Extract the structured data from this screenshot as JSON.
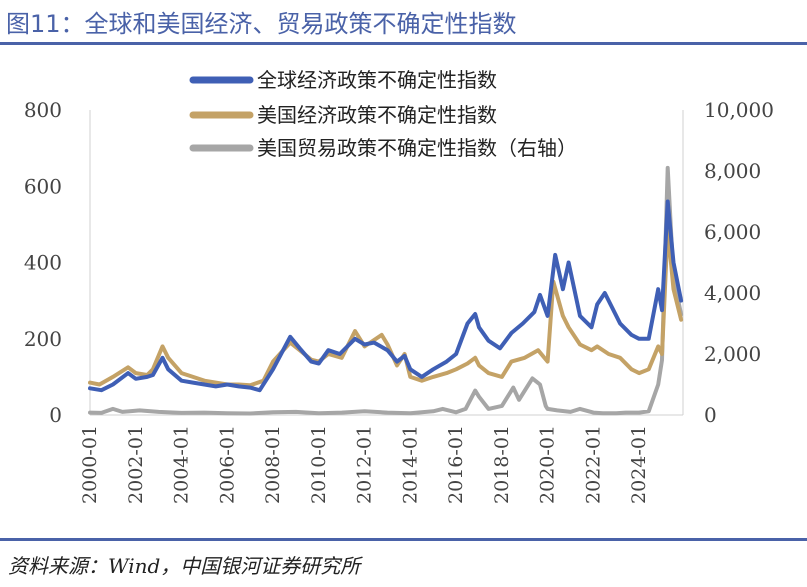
{
  "figure": {
    "title": "图11：全球和美国经济、贸易政策不确定性指数",
    "source": "资料来源：Wind，中国银河证券研究所"
  },
  "colors": {
    "accent": "#4a62a8",
    "global_epu": "#3f5fb5",
    "us_epu": "#c4a266",
    "us_tpu": "#a6a6a6"
  },
  "chart_data": {
    "type": "line",
    "x_ticks": [
      "2000-01",
      "2002-01",
      "2004-01",
      "2006-01",
      "2008-01",
      "2010-01",
      "2012-01",
      "2014-01",
      "2016-01",
      "2018-01",
      "2020-01",
      "2022-01",
      "2024-01"
    ],
    "y_left": {
      "ticks": [
        "0",
        "200",
        "400",
        "600",
        "800"
      ],
      "ylim": [
        0,
        800
      ]
    },
    "y_right": {
      "ticks": [
        "0",
        "2,000",
        "4,000",
        "6,000",
        "8,000",
        "10,000"
      ],
      "ylim": [
        0,
        10000
      ]
    },
    "legend_position": "top",
    "series": [
      {
        "name": "全球经济政策不确定性指数",
        "axis": "left",
        "color": "#3f5fb5",
        "points": [
          [
            "2000-01",
            70
          ],
          [
            "2000-07",
            65
          ],
          [
            "2001-01",
            80
          ],
          [
            "2001-09",
            110
          ],
          [
            "2002-01",
            95
          ],
          [
            "2002-07",
            100
          ],
          [
            "2002-10",
            105
          ],
          [
            "2003-03",
            150
          ],
          [
            "2003-06",
            120
          ],
          [
            "2004-01",
            90
          ],
          [
            "2004-07",
            85
          ],
          [
            "2005-01",
            80
          ],
          [
            "2005-07",
            75
          ],
          [
            "2006-01",
            80
          ],
          [
            "2006-07",
            75
          ],
          [
            "2007-01",
            72
          ],
          [
            "2007-06",
            65
          ],
          [
            "2008-01",
            120
          ],
          [
            "2008-10",
            205
          ],
          [
            "2009-03",
            175
          ],
          [
            "2009-09",
            140
          ],
          [
            "2010-01",
            135
          ],
          [
            "2010-06",
            170
          ],
          [
            "2010-12",
            160
          ],
          [
            "2011-08",
            200
          ],
          [
            "2012-01",
            185
          ],
          [
            "2012-06",
            190
          ],
          [
            "2013-01",
            170
          ],
          [
            "2013-06",
            140
          ],
          [
            "2013-10",
            155
          ],
          [
            "2014-01",
            120
          ],
          [
            "2014-07",
            100
          ],
          [
            "2015-01",
            120
          ],
          [
            "2015-08",
            140
          ],
          [
            "2016-01",
            160
          ],
          [
            "2016-07",
            240
          ],
          [
            "2016-11",
            265
          ],
          [
            "2017-01",
            230
          ],
          [
            "2017-06",
            195
          ],
          [
            "2017-12",
            175
          ],
          [
            "2018-06",
            215
          ],
          [
            "2018-12",
            240
          ],
          [
            "2019-06",
            270
          ],
          [
            "2019-09",
            315
          ],
          [
            "2020-01",
            260
          ],
          [
            "2020-05",
            420
          ],
          [
            "2020-09",
            330
          ],
          [
            "2020-12",
            400
          ],
          [
            "2021-06",
            260
          ],
          [
            "2021-12",
            230
          ],
          [
            "2022-03",
            290
          ],
          [
            "2022-07",
            320
          ],
          [
            "2022-12",
            270
          ],
          [
            "2023-03",
            240
          ],
          [
            "2023-09",
            210
          ],
          [
            "2024-01",
            200
          ],
          [
            "2024-06",
            200
          ],
          [
            "2024-11",
            330
          ],
          [
            "2025-01",
            275
          ],
          [
            "2025-04",
            560
          ],
          [
            "2025-07",
            400
          ],
          [
            "2025-11",
            300
          ]
        ]
      },
      {
        "name": "美国经济政策不确定性指数",
        "axis": "left",
        "color": "#c4a266",
        "points": [
          [
            "2000-01",
            85
          ],
          [
            "2000-06",
            80
          ],
          [
            "2001-01",
            100
          ],
          [
            "2001-09",
            125
          ],
          [
            "2002-01",
            110
          ],
          [
            "2002-07",
            105
          ],
          [
            "2002-10",
            120
          ],
          [
            "2003-03",
            180
          ],
          [
            "2003-06",
            150
          ],
          [
            "2004-01",
            110
          ],
          [
            "2004-07",
            100
          ],
          [
            "2005-01",
            90
          ],
          [
            "2005-07",
            85
          ],
          [
            "2006-01",
            80
          ],
          [
            "2006-07",
            80
          ],
          [
            "2007-01",
            78
          ],
          [
            "2007-08",
            90
          ],
          [
            "2008-01",
            140
          ],
          [
            "2008-10",
            190
          ],
          [
            "2009-03",
            170
          ],
          [
            "2009-09",
            145
          ],
          [
            "2010-01",
            140
          ],
          [
            "2010-06",
            160
          ],
          [
            "2011-01",
            150
          ],
          [
            "2011-08",
            220
          ],
          [
            "2012-01",
            180
          ],
          [
            "2012-10",
            210
          ],
          [
            "2013-01",
            185
          ],
          [
            "2013-06",
            130
          ],
          [
            "2013-10",
            160
          ],
          [
            "2014-01",
            100
          ],
          [
            "2014-07",
            90
          ],
          [
            "2015-01",
            100
          ],
          [
            "2015-08",
            110
          ],
          [
            "2016-01",
            120
          ],
          [
            "2016-07",
            135
          ],
          [
            "2016-11",
            150
          ],
          [
            "2017-01",
            130
          ],
          [
            "2017-06",
            110
          ],
          [
            "2018-01",
            100
          ],
          [
            "2018-06",
            140
          ],
          [
            "2019-01",
            150
          ],
          [
            "2019-08",
            170
          ],
          [
            "2020-01",
            140
          ],
          [
            "2020-04",
            350
          ],
          [
            "2020-09",
            260
          ],
          [
            "2020-12",
            230
          ],
          [
            "2021-06",
            185
          ],
          [
            "2021-12",
            170
          ],
          [
            "2022-03",
            180
          ],
          [
            "2022-09",
            160
          ],
          [
            "2023-03",
            150
          ],
          [
            "2023-09",
            120
          ],
          [
            "2024-01",
            110
          ],
          [
            "2024-06",
            120
          ],
          [
            "2024-11",
            180
          ],
          [
            "2025-01",
            160
          ],
          [
            "2025-04",
            490
          ],
          [
            "2025-07",
            330
          ],
          [
            "2025-11",
            250
          ]
        ]
      },
      {
        "name": "美国贸易政策不确定性指数（右轴）",
        "axis": "right",
        "color": "#a6a6a6",
        "points": [
          [
            "2000-01",
            80
          ],
          [
            "2000-07",
            70
          ],
          [
            "2001-01",
            200
          ],
          [
            "2001-06",
            100
          ],
          [
            "2002-03",
            150
          ],
          [
            "2003-01",
            100
          ],
          [
            "2004-01",
            70
          ],
          [
            "2005-01",
            80
          ],
          [
            "2006-01",
            60
          ],
          [
            "2007-01",
            50
          ],
          [
            "2008-01",
            90
          ],
          [
            "2009-01",
            100
          ],
          [
            "2010-01",
            60
          ],
          [
            "2011-01",
            80
          ],
          [
            "2012-01",
            120
          ],
          [
            "2013-01",
            80
          ],
          [
            "2014-01",
            60
          ],
          [
            "2015-01",
            120
          ],
          [
            "2015-06",
            200
          ],
          [
            "2016-01",
            90
          ],
          [
            "2016-06",
            200
          ],
          [
            "2016-11",
            800
          ],
          [
            "2017-01",
            600
          ],
          [
            "2017-06",
            200
          ],
          [
            "2018-01",
            300
          ],
          [
            "2018-07",
            900
          ],
          [
            "2018-10",
            500
          ],
          [
            "2019-05",
            1200
          ],
          [
            "2019-09",
            1000
          ],
          [
            "2019-12",
            300
          ],
          [
            "2020-01",
            200
          ],
          [
            "2020-06",
            150
          ],
          [
            "2021-01",
            100
          ],
          [
            "2021-06",
            200
          ],
          [
            "2022-01",
            80
          ],
          [
            "2022-06",
            60
          ],
          [
            "2023-01",
            60
          ],
          [
            "2023-06",
            80
          ],
          [
            "2024-01",
            80
          ],
          [
            "2024-06",
            120
          ],
          [
            "2024-11",
            1000
          ],
          [
            "2025-01",
            1800
          ],
          [
            "2025-04",
            8100
          ],
          [
            "2025-07",
            4500
          ],
          [
            "2025-11",
            3300
          ]
        ]
      }
    ]
  }
}
